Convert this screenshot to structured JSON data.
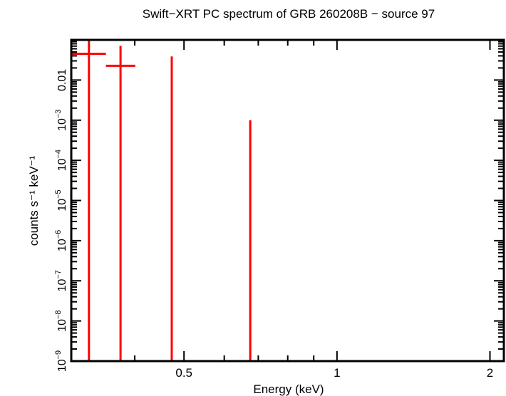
{
  "chart_data": {
    "type": "scatter",
    "title": "Swift−XRT PC spectrum of GRB 260208B − source 97",
    "xlabel": "Energy (keV)",
    "ylabel": "counts s⁻¹ keV⁻¹",
    "x_scale": "log",
    "y_scale": "log",
    "xlim": [
      0.3,
      2.13
    ],
    "ylim": [
      1e-09,
      0.1
    ],
    "grid": false,
    "color": "#ff0000",
    "x_ticks": [
      {
        "value": 0.5,
        "label": "0.5"
      },
      {
        "value": 1,
        "label": "1"
      },
      {
        "value": 2,
        "label": "2"
      }
    ],
    "y_ticks": [
      {
        "value": 0.01,
        "base": "0.01",
        "exp": ""
      },
      {
        "value": 0.001,
        "base": "10",
        "exp": "−3"
      },
      {
        "value": 0.0001,
        "base": "10",
        "exp": "−4"
      },
      {
        "value": 1e-05,
        "base": "10",
        "exp": "−5"
      },
      {
        "value": 1e-06,
        "base": "10",
        "exp": "−6"
      },
      {
        "value": 1e-07,
        "base": "10",
        "exp": "−7"
      },
      {
        "value": 1e-08,
        "base": "10",
        "exp": "−8"
      },
      {
        "value": 1e-09,
        "base": "10",
        "exp": "−9"
      }
    ],
    "points": [
      {
        "x": 0.325,
        "x_low": 0.3,
        "x_high": 0.351,
        "y": 0.045,
        "y_low": 1e-09,
        "y_high": 0.1
      },
      {
        "x": 0.375,
        "x_low": 0.351,
        "x_high": 0.401,
        "y": 0.0226,
        "y_low": 1e-09,
        "y_high": 0.071
      },
      {
        "x": 0.473,
        "x_low": null,
        "x_high": null,
        "y": null,
        "y_low": 1e-09,
        "y_high": 0.0386
      },
      {
        "x": 0.675,
        "x_low": null,
        "x_high": null,
        "y": null,
        "y_low": 1e-09,
        "y_high": 0.001
      }
    ]
  }
}
